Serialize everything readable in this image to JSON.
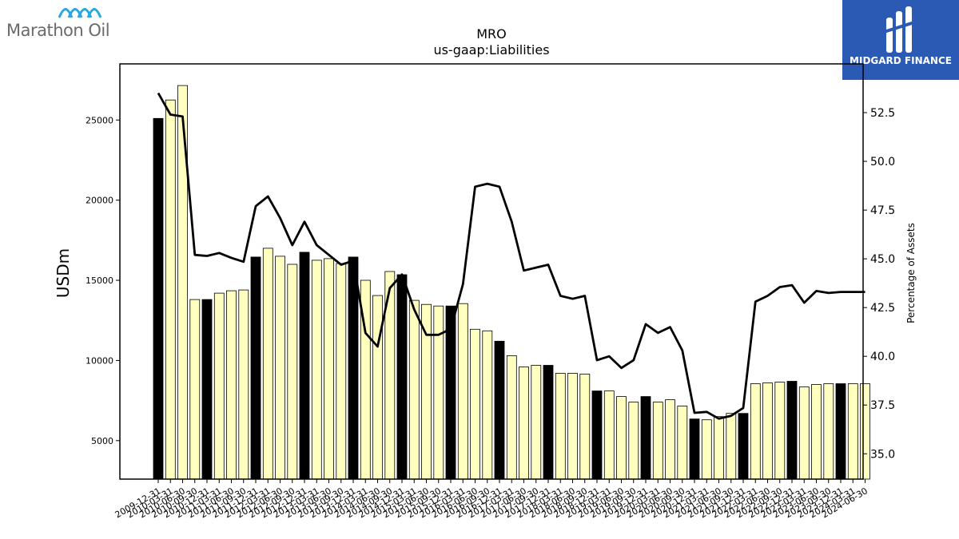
{
  "brand": {
    "left_logo_text": "Marathon Oil",
    "right_logo_text": "MIDGARD FINANCE",
    "right_logo_color": "#2a5ab4",
    "left_logo_icon_color": "#29a8e0"
  },
  "chart_data": {
    "type": "bar",
    "title": "MRO",
    "subtitle": "us-gaap:Liabilities",
    "ylabel": "USDm",
    "y2label": "Percentage of Assets",
    "ylim": [
      2600,
      28500
    ],
    "y2lim": [
      33.7,
      55.0
    ],
    "yticks": [
      5000,
      10000,
      15000,
      20000,
      25000
    ],
    "y2ticks": [
      35.0,
      37.5,
      40.0,
      42.5,
      45.0,
      47.5,
      50.0,
      52.5
    ],
    "bar_colors": {
      "year_end": "#000000",
      "interim": "#ffffc0"
    },
    "line_color": "#000000",
    "categories": [
      "2009-12-31",
      "2010-03-31",
      "2010-06-30",
      "2010-09-30",
      "2010-12-31",
      "2011-03-31",
      "2011-06-30",
      "2011-09-30",
      "2011-12-31",
      "2012-03-31",
      "2012-06-30",
      "2012-09-30",
      "2012-12-31",
      "2013-03-31",
      "2013-06-30",
      "2013-09-30",
      "2013-12-31",
      "2014-03-31",
      "2014-06-30",
      "2014-09-30",
      "2014-12-31",
      "2015-03-31",
      "2015-06-30",
      "2015-09-30",
      "2015-12-31",
      "2016-03-31",
      "2016-06-30",
      "2016-09-30",
      "2016-12-31",
      "2017-03-31",
      "2017-06-30",
      "2017-09-30",
      "2017-12-31",
      "2018-03-31",
      "2018-06-30",
      "2018-09-30",
      "2018-12-31",
      "2019-03-31",
      "2019-06-30",
      "2019-09-30",
      "2019-12-31",
      "2020-03-31",
      "2020-06-30",
      "2020-09-30",
      "2020-12-31",
      "2021-03-31",
      "2021-06-30",
      "2021-09-30",
      "2021-12-31",
      "2022-03-31",
      "2022-06-30",
      "2022-09-30",
      "2022-12-31",
      "2023-03-31",
      "2023-06-30",
      "2023-09-30",
      "2023-12-31",
      "2024-03-31",
      "2024-06-30"
    ],
    "tick_labels": [
      "2009-12-31",
      "2010-03-31",
      "2010-06-30",
      "2010-09-30",
      "2010-12-31",
      "2011-03-31",
      "2011-06-30",
      "2011-09-30",
      "2011-12-31",
      "2012-03-31",
      "2012-06-30",
      "2012-09-30",
      "2012-12-31",
      "2013-03-31",
      "2013-06-30",
      "2013-09-30",
      "2013-12-31",
      "2014-03-31",
      "2014-06-30",
      "2014-09-30",
      "2014-12-31",
      "2015-03-31",
      "2015-06-30",
      "2015-09-30",
      "2015-12-31",
      "2016-03-31",
      "2016-06-30",
      "2016-09-30",
      "2016-12-31",
      "2017-03-31",
      "2017-06-30",
      "2017-09-30",
      "2017-12-31",
      "2018-03-31",
      "2018-06-30",
      "2018-09-30",
      "2018-12-31",
      "2019-03-31",
      "2019-06-30",
      "2019-09-30",
      "2019-12-31",
      "2020-03-31",
      "2020-06-30",
      "2020-09-30",
      "2020-12-31",
      "2021-03-31",
      "2021-06-30",
      "2021-09-30",
      "2021-12-31",
      "2022-03-31",
      "2022-06-30",
      "2022-09-30",
      "2022-12-31",
      "2023-03-31",
      "2023-06-30",
      "2023-09-30",
      "2023-12-31",
      "2024-03-31",
      "2024-06-30"
    ],
    "series": [
      {
        "type": "bar",
        "axis": "left",
        "values": [
          25100,
          26250,
          27150,
          13800,
          13800,
          14200,
          14350,
          14400,
          16450,
          17000,
          16500,
          16000,
          16750,
          16250,
          16350,
          16050,
          16450,
          15000,
          14050,
          15550,
          15350,
          13750,
          13500,
          13400,
          13400,
          13550,
          11950,
          11850,
          11200,
          10300,
          9600,
          9700,
          9700,
          9200,
          9200,
          9150,
          8100,
          8100,
          7750,
          7400,
          7750,
          7400,
          7550,
          7150,
          6350,
          6300,
          6500,
          6700,
          6700,
          8550,
          8600,
          8650,
          8700,
          8350,
          8500,
          8550,
          8550,
          8550,
          8550
        ]
      },
      {
        "type": "line",
        "axis": "right",
        "values": [
          53.5,
          52.4,
          52.3,
          45.2,
          45.15,
          45.3,
          45.05,
          44.85,
          47.7,
          48.2,
          47.1,
          45.7,
          46.9,
          45.7,
          45.2,
          44.7,
          44.9,
          41.2,
          40.5,
          43.5,
          44.2,
          42.4,
          41.1,
          41.1,
          41.4,
          43.7,
          48.7,
          48.85,
          48.7,
          46.9,
          44.4,
          44.55,
          44.7,
          43.1,
          42.95,
          43.1,
          39.8,
          40.0,
          39.4,
          39.8,
          41.65,
          41.2,
          41.5,
          40.3,
          37.1,
          37.15,
          36.8,
          36.95,
          37.35,
          42.8,
          43.1,
          43.55,
          43.65,
          42.75,
          43.35,
          43.25,
          43.3,
          43.3,
          43.3
        ]
      }
    ]
  }
}
